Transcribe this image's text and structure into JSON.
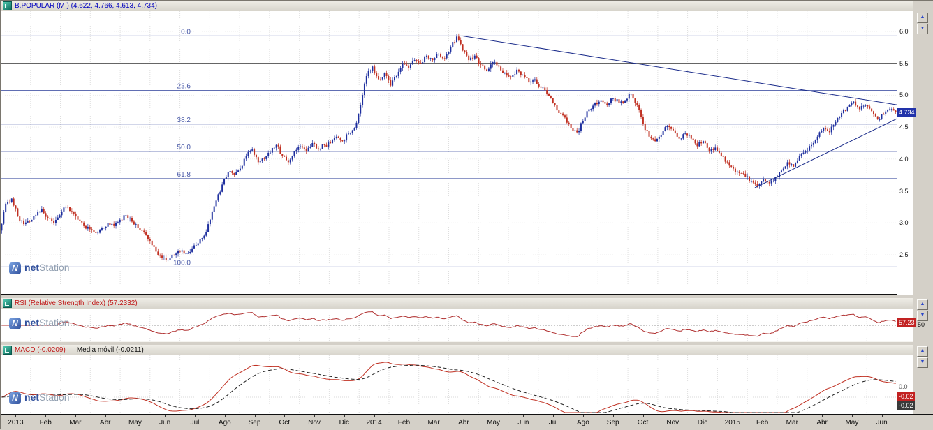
{
  "panels": {
    "price": {
      "title": "B.POPULAR (M ) (4.622, 4.766, 4.613, 4.734)",
      "current_price": "4.734"
    },
    "rsi": {
      "title": "RSI (Relative Strength Index) (57.2332)",
      "value": "57.23",
      "mid_label": "50"
    },
    "macd": {
      "title": "MACD (-0.0209)",
      "title2": "Media móvil (-0.0211)",
      "value": "-0.02",
      "signal_value": "-0.02",
      "zero_label": "0.0"
    }
  },
  "watermark": {
    "icon_letter": "N",
    "bold": "net",
    "light": "Station"
  },
  "scroll_buttons": {
    "up": "▲",
    "down": "▼"
  },
  "chart_data": {
    "type": "candlestick",
    "symbol": "B.POPULAR",
    "timeframe": "M",
    "ohlc_last": {
      "open": 4.622,
      "high": 4.766,
      "low": 4.613,
      "close": 4.734
    },
    "x_labels": [
      "2013",
      "Feb",
      "Mar",
      "Abr",
      "May",
      "Jun",
      "Jul",
      "Ago",
      "Sep",
      "Oct",
      "Nov",
      "Dic",
      "2014",
      "Feb",
      "Mar",
      "Abr",
      "May",
      "Jun",
      "Jul",
      "Ago",
      "Sep",
      "Oct",
      "Nov",
      "Dic",
      "2015",
      "Feb",
      "Mar",
      "Abr",
      "May",
      "Jun"
    ],
    "points_per_month": 5,
    "closes": [
      2.88,
      3.3,
      3.38,
      3.1,
      2.98,
      3.02,
      3.12,
      3.22,
      3.08,
      3.0,
      3.12,
      3.25,
      3.18,
      3.05,
      2.95,
      2.9,
      2.84,
      2.92,
      3.0,
      2.95,
      3.05,
      3.12,
      3.02,
      2.92,
      2.85,
      2.72,
      2.55,
      2.45,
      2.42,
      2.5,
      2.55,
      2.52,
      2.6,
      2.68,
      2.8,
      3.05,
      3.35,
      3.6,
      3.8,
      3.75,
      3.85,
      4.05,
      4.15,
      3.95,
      4.0,
      4.1,
      4.22,
      4.05,
      3.95,
      4.12,
      4.2,
      4.12,
      4.25,
      4.15,
      4.22,
      4.25,
      4.35,
      4.28,
      4.4,
      4.48,
      4.85,
      5.3,
      5.45,
      5.25,
      5.35,
      5.15,
      5.3,
      5.5,
      5.42,
      5.55,
      5.5,
      5.62,
      5.55,
      5.65,
      5.58,
      5.75,
      5.92,
      5.7,
      5.55,
      5.62,
      5.48,
      5.38,
      5.52,
      5.45,
      5.35,
      5.28,
      5.4,
      5.32,
      5.2,
      5.25,
      5.12,
      5.02,
      4.88,
      4.72,
      4.65,
      4.48,
      4.42,
      4.6,
      4.78,
      4.88,
      4.92,
      4.85,
      4.95,
      4.88,
      4.92,
      5.02,
      4.85,
      4.55,
      4.35,
      4.28,
      4.38,
      4.52,
      4.45,
      4.32,
      4.4,
      4.32,
      4.2,
      4.28,
      4.12,
      4.18,
      4.05,
      3.95,
      3.85,
      3.78,
      3.72,
      3.65,
      3.58,
      3.68,
      3.62,
      3.72,
      3.82,
      3.95,
      3.88,
      4.05,
      4.12,
      4.22,
      4.35,
      4.48,
      4.42,
      4.58,
      4.72,
      4.82,
      4.9,
      4.78,
      4.85,
      4.75,
      4.62,
      4.7,
      4.78,
      4.734
    ],
    "price_axis_ticks": [
      6.0,
      5.5,
      5.0,
      4.5,
      4.0,
      3.5,
      3.0,
      2.5
    ],
    "hline_price": 5.5,
    "fibonacci": {
      "high": 5.93,
      "low": 2.31,
      "levels": [
        {
          "label": "0.0",
          "price": 5.93
        },
        {
          "label": "23.6",
          "price": 5.075
        },
        {
          "label": "38.2",
          "price": 4.547
        },
        {
          "label": "50.0",
          "price": 4.12
        },
        {
          "label": "61.8",
          "price": 3.693
        },
        {
          "label": "100.0",
          "price": 2.31
        }
      ]
    },
    "trendlines": [
      {
        "x1_month": 15.45,
        "p1": 5.93,
        "x2_month": 30,
        "p2": 4.85
      },
      {
        "x1_month": 25.25,
        "p1": 3.55,
        "x2_month": 30,
        "p2": 4.63
      }
    ],
    "indicators": {
      "rsi": {
        "period": 28,
        "last": 57.2332,
        "mid": 50
      },
      "macd": {
        "fast": 24,
        "slow": 52,
        "signal": 18,
        "last": -0.0209,
        "signal_last": -0.0211
      }
    },
    "colors": {
      "up": "#1e2f9e",
      "down": "#c03022",
      "fib": "#4a5aa8",
      "trend": "#1a2b8a",
      "rsi_line": "#b03030",
      "macd_line": "#c03022",
      "signal_line": "#222222",
      "tag_price_bg": "#2233aa",
      "tag_rsi_bg": "#c22222",
      "tag_macd_bg": "#c22222",
      "tag_signal_bg": "#3a3a3a"
    }
  }
}
